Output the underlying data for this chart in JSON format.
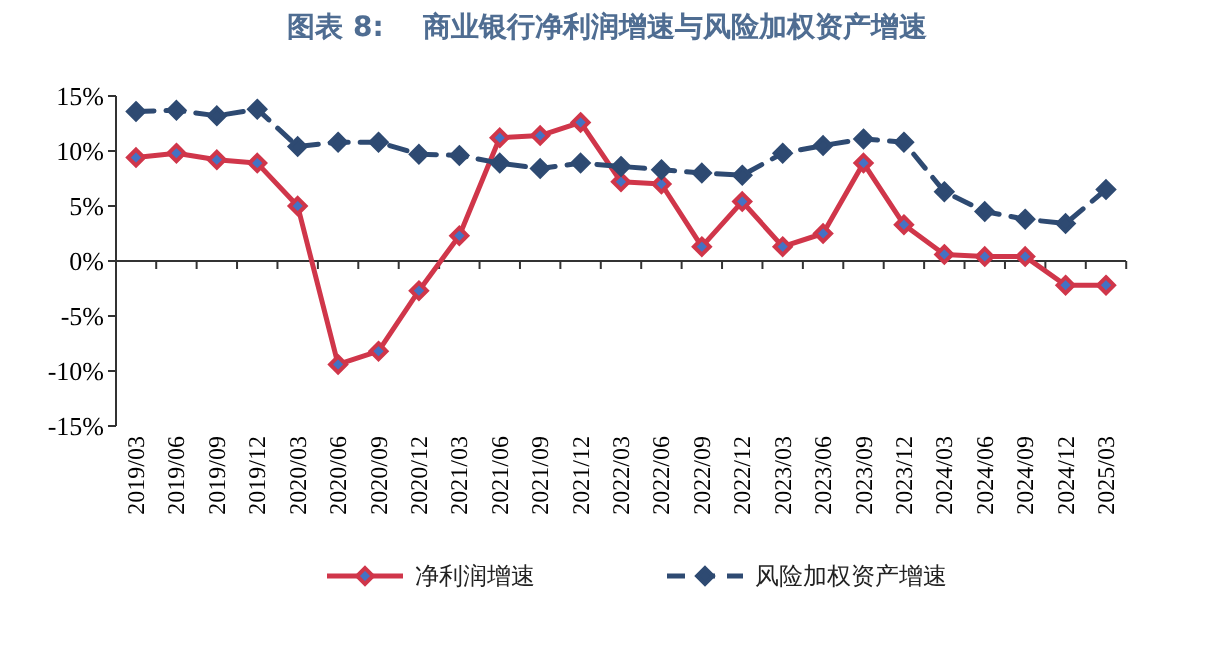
{
  "chart_data": {
    "type": "line",
    "title": "图表 8:    商业银行净利润增速与风险加权资产增速",
    "categories": [
      "2019/03",
      "2019/06",
      "2019/09",
      "2019/12",
      "2020/03",
      "2020/06",
      "2020/09",
      "2020/12",
      "2021/03",
      "2021/06",
      "2021/09",
      "2021/12",
      "2022/03",
      "2022/06",
      "2022/09",
      "2022/12",
      "2023/03",
      "2023/06",
      "2023/09",
      "2023/12",
      "2024/03",
      "2024/06",
      "2024/09",
      "2024/12",
      "2025/03"
    ],
    "series": [
      {
        "name": "净利润增速",
        "color": "#d0364a",
        "line_style": "solid",
        "values": [
          9.4,
          9.8,
          9.2,
          8.9,
          5.0,
          -9.4,
          -8.2,
          -2.7,
          2.3,
          11.2,
          11.4,
          12.6,
          7.2,
          7.0,
          1.3,
          5.4,
          1.3,
          2.5,
          8.9,
          3.3,
          0.6,
          0.4,
          0.4,
          -2.2,
          -2.2
        ]
      },
      {
        "name": "风险加权资产增速",
        "color": "#2e4a72",
        "line_style": "dashed",
        "values": [
          13.6,
          13.7,
          13.2,
          13.8,
          10.4,
          10.8,
          10.8,
          9.7,
          9.6,
          8.9,
          8.4,
          8.9,
          8.6,
          8.3,
          8.0,
          7.8,
          9.8,
          10.5,
          11.1,
          10.8,
          6.3,
          4.5,
          3.8,
          3.4,
          6.5
        ]
      }
    ],
    "ylim": [
      -15,
      15
    ],
    "yticks": [
      {
        "value": -15,
        "label": "-15%"
      },
      {
        "value": -10,
        "label": "-10%"
      },
      {
        "value": -5,
        "label": "-5%"
      },
      {
        "value": 0,
        "label": "0%"
      },
      {
        "value": 5,
        "label": "5%"
      },
      {
        "value": 10,
        "label": "10%"
      },
      {
        "value": 15,
        "label": "15%"
      }
    ],
    "legend": "bottom",
    "marker": "diamond"
  }
}
